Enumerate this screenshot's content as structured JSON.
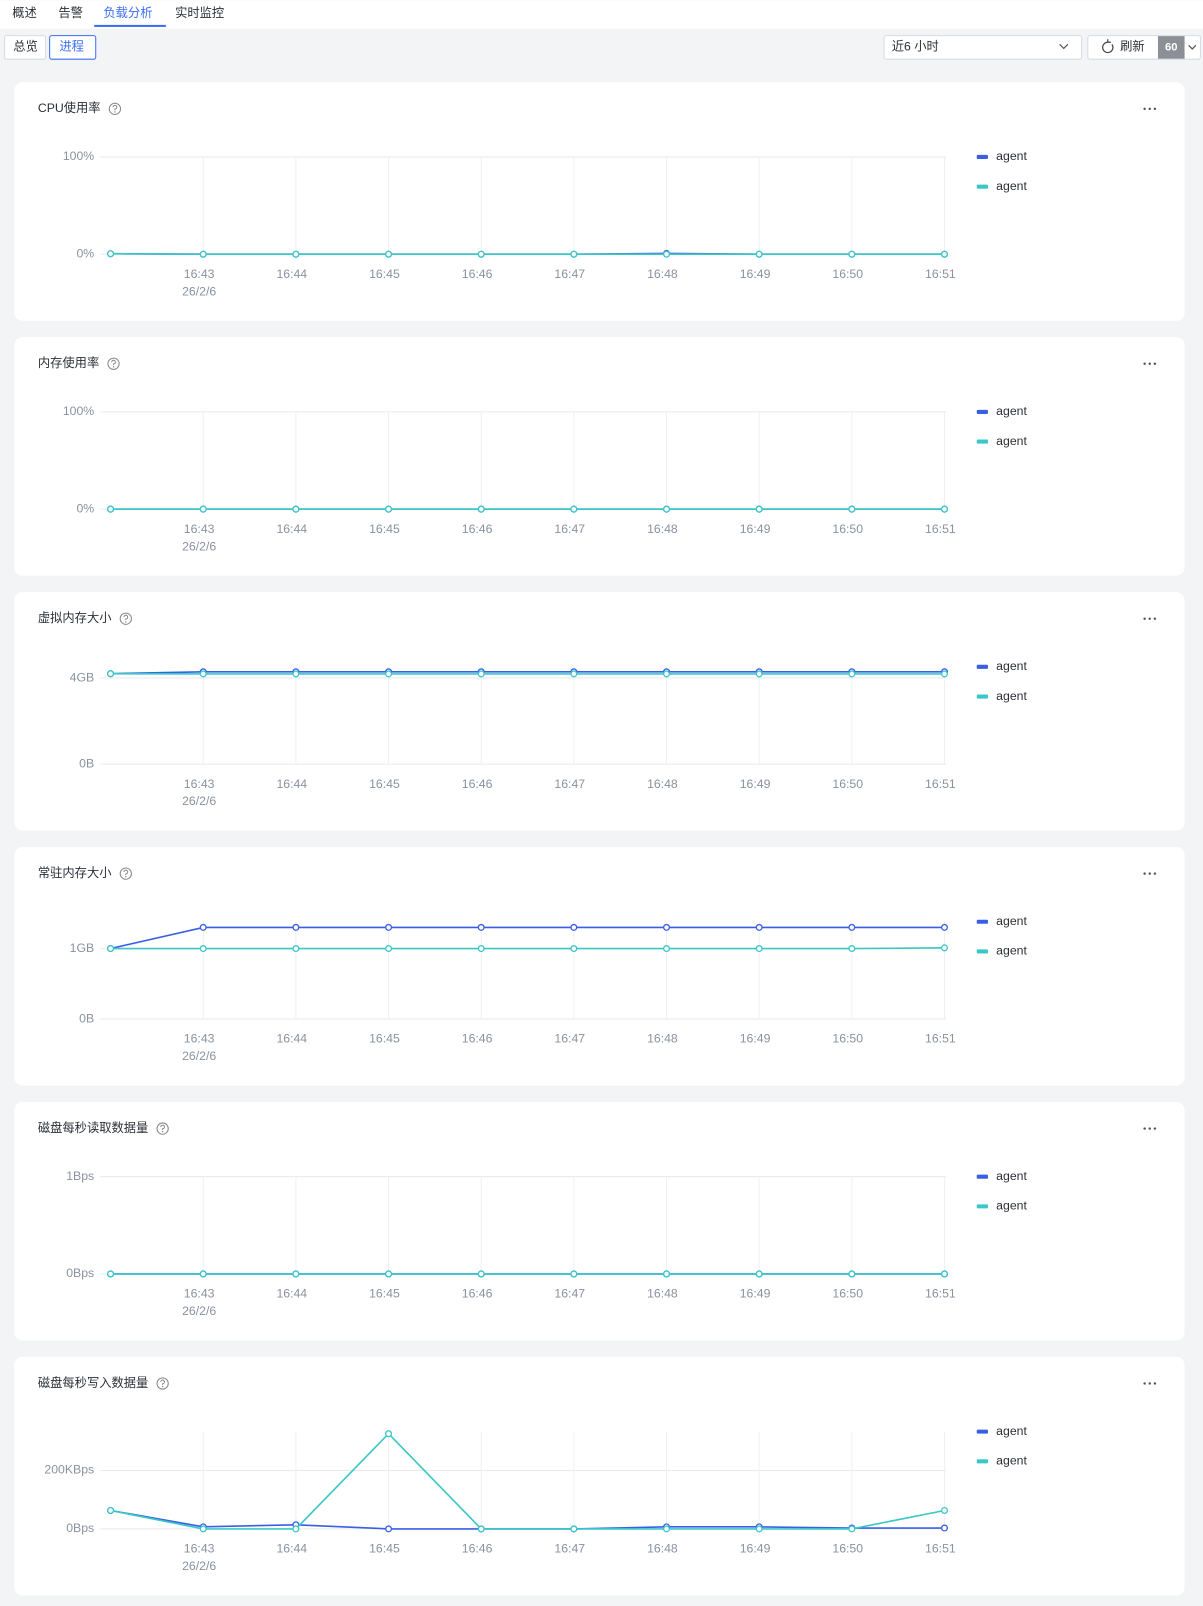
{
  "nav": {
    "tabs": [
      "概述",
      "告警",
      "负载分析",
      "实时监控"
    ],
    "subtabs": [
      "总览",
      "进程"
    ],
    "time_range": "近6 小时",
    "refresh": "刷新",
    "interval": "60"
  },
  "chart_data": [
    {
      "type": "line",
      "title": "CPU使用率",
      "categories": [
        null,
        "16:43",
        "16:44",
        "16:45",
        "16:46",
        "16:47",
        "16:48",
        "16:49",
        "16:50",
        "16:51"
      ],
      "date_label": "26/2/6",
      "series": [
        {
          "name": "agent",
          "color": "#3a5fe6",
          "values": [
            0.5,
            0,
            0,
            0,
            0,
            0,
            0.8,
            0,
            0,
            0
          ]
        },
        {
          "name": "agent",
          "color": "#3cc7c7",
          "values": [
            0.5,
            0,
            0,
            0,
            0,
            0,
            0,
            0,
            0,
            0
          ]
        }
      ],
      "ylim": [
        0,
        100
      ],
      "yticks": [
        {
          "value": 0,
          "label": "0%"
        },
        {
          "value": 100,
          "label": "100%"
        }
      ],
      "grid": true
    },
    {
      "type": "line",
      "title": "内存使用率",
      "categories": [
        null,
        "16:43",
        "16:44",
        "16:45",
        "16:46",
        "16:47",
        "16:48",
        "16:49",
        "16:50",
        "16:51"
      ],
      "date_label": "26/2/6",
      "series": [
        {
          "name": "agent",
          "color": "#3a5fe6",
          "values": [
            0,
            0,
            0,
            0,
            0,
            0,
            0,
            0,
            0,
            0
          ]
        },
        {
          "name": "agent",
          "color": "#3cc7c7",
          "values": [
            0,
            0,
            0,
            0,
            0,
            0,
            0,
            0,
            0,
            0
          ]
        }
      ],
      "ylim": [
        0,
        100
      ],
      "yticks": [
        {
          "value": 0,
          "label": "0%"
        },
        {
          "value": 100,
          "label": "100%"
        }
      ],
      "grid": true
    },
    {
      "type": "line",
      "title": "虚拟内存大小",
      "categories": [
        null,
        "16:43",
        "16:44",
        "16:45",
        "16:46",
        "16:47",
        "16:48",
        "16:49",
        "16:50",
        "16:51"
      ],
      "date_label": "26/2/6",
      "series": [
        {
          "name": "agent",
          "color": "#3a5fe6",
          "values": [
            4.2,
            4.29,
            4.29,
            4.29,
            4.29,
            4.29,
            4.29,
            4.29,
            4.29,
            4.29
          ]
        },
        {
          "name": "agent",
          "color": "#3cc7c7",
          "values": [
            4.2,
            4.19,
            4.19,
            4.19,
            4.19,
            4.19,
            4.19,
            4.19,
            4.19,
            4.19
          ]
        }
      ],
      "ylim": [
        0,
        4.52
      ],
      "yticks": [
        {
          "value": 0,
          "label": "0B"
        },
        {
          "value": 4,
          "label": "4GB"
        }
      ],
      "grid": true
    },
    {
      "type": "line",
      "title": "常驻内存大小",
      "categories": [
        null,
        "16:43",
        "16:44",
        "16:45",
        "16:46",
        "16:47",
        "16:48",
        "16:49",
        "16:50",
        "16:51"
      ],
      "date_label": "26/2/6",
      "series": [
        {
          "name": "agent",
          "color": "#3a5fe6",
          "values": [
            1.0,
            1.3,
            1.3,
            1.3,
            1.3,
            1.3,
            1.3,
            1.3,
            1.3,
            1.3
          ]
        },
        {
          "name": "agent",
          "color": "#3cc7c7",
          "values": [
            1.0,
            1.0,
            1.0,
            1.0,
            1.0,
            1.0,
            1.0,
            1.0,
            1.0,
            1.01
          ]
        }
      ],
      "ylim": [
        0,
        1.38
      ],
      "yticks": [
        {
          "value": 0,
          "label": "0B"
        },
        {
          "value": 1,
          "label": "1GB"
        }
      ],
      "grid": true
    },
    {
      "type": "line",
      "title": "磁盘每秒读取数据量",
      "categories": [
        null,
        "16:43",
        "16:44",
        "16:45",
        "16:46",
        "16:47",
        "16:48",
        "16:49",
        "16:50",
        "16:51"
      ],
      "date_label": "26/2/6",
      "series": [
        {
          "name": "agent",
          "color": "#3a5fe6",
          "values": [
            0,
            0,
            0,
            0,
            0,
            0,
            0,
            0,
            0,
            0
          ]
        },
        {
          "name": "agent",
          "color": "#3cc7c7",
          "values": [
            0,
            0,
            0,
            0,
            0,
            0,
            0,
            0,
            0,
            0
          ]
        }
      ],
      "ylim": [
        0,
        1
      ],
      "yticks": [
        {
          "value": 0,
          "label": "0Bps"
        },
        {
          "value": 1,
          "label": "1Bps"
        }
      ],
      "grid": true
    },
    {
      "type": "line",
      "title": "磁盘每秒写入数据量",
      "categories": [
        null,
        "16:43",
        "16:44",
        "16:45",
        "16:46",
        "16:47",
        "16:48",
        "16:49",
        "16:50",
        "16:51"
      ],
      "date_label": "26/2/6",
      "series": [
        {
          "name": "agent",
          "color": "#3a5fe6",
          "values": [
            63,
            7,
            14,
            0,
            0,
            0,
            7,
            7,
            3,
            3
          ]
        },
        {
          "name": "agent",
          "color": "#3cc7c7",
          "values": [
            63,
            0,
            0,
            326,
            0,
            0,
            0,
            0,
            0,
            63
          ]
        }
      ],
      "ylim": [
        0,
        333
      ],
      "yticks": [
        {
          "value": 0,
          "label": "0Bps"
        },
        {
          "value": 200,
          "label": "200KBps"
        }
      ],
      "grid": true
    }
  ]
}
